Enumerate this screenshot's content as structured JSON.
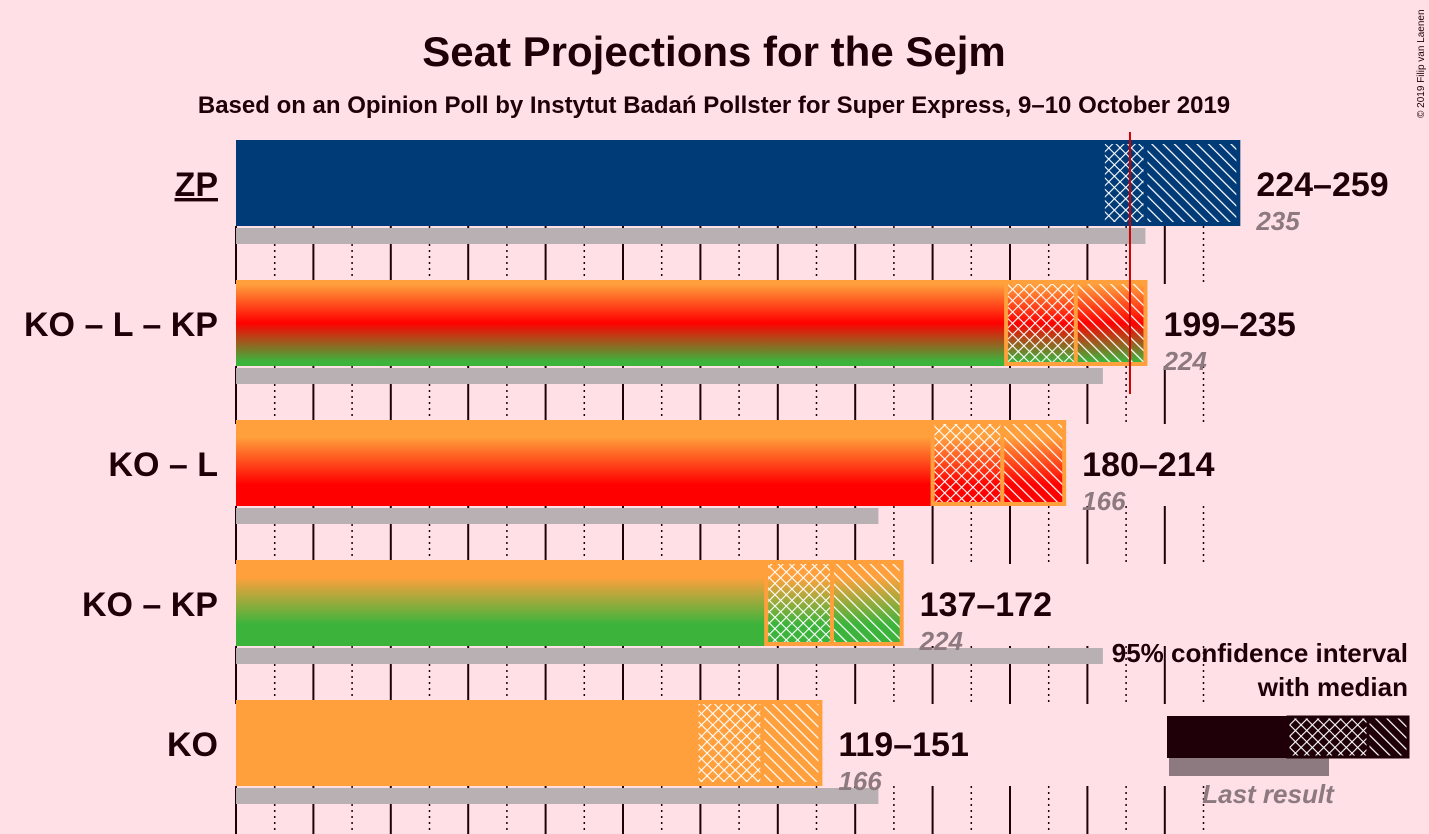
{
  "chart_data": {
    "type": "bar",
    "title": "Seat Projections for the Sejm",
    "subtitle": "Based on an Opinion Poll by Instytut Badań Pollster for Super Express, 9–10 October 2019",
    "copyright": "© 2019 Filip van Laenen",
    "majority": 231,
    "xlim": [
      0,
      260
    ],
    "categories": [
      "ZP",
      "KO – L – KP",
      "KO – L",
      "KO – KP",
      "KO"
    ],
    "series": [
      {
        "party": "ZP",
        "underline": true,
        "low": 224,
        "median": 235,
        "high": 259,
        "range_label": "224–259",
        "last_result": 235,
        "last_label": "235",
        "colors": [
          "#003b78"
        ]
      },
      {
        "party": "KO – L – KP",
        "underline": false,
        "low": 199,
        "median": 217,
        "high": 235,
        "range_label": "199–235",
        "last_result": 224,
        "last_label": "224",
        "colors": [
          "#ffa03c",
          "#ff0000",
          "#3cb43c"
        ]
      },
      {
        "party": "KO – L",
        "underline": false,
        "low": 180,
        "median": 198,
        "high": 214,
        "range_label": "180–214",
        "last_result": 166,
        "last_label": "166",
        "colors": [
          "#ffa03c",
          "#ff0000"
        ]
      },
      {
        "party": "KO – KP",
        "underline": false,
        "low": 137,
        "median": 154,
        "high": 172,
        "range_label": "137–172",
        "last_result": 224,
        "last_label": "224",
        "colors": [
          "#ffa03c",
          "#3cb43c"
        ]
      },
      {
        "party": "KO",
        "underline": false,
        "low": 119,
        "median": 136,
        "high": 151,
        "range_label": "119–151",
        "last_result": 166,
        "last_label": "166",
        "colors": [
          "#ffa03c"
        ]
      }
    ],
    "legend": {
      "line1": "95% confidence interval",
      "line2": "with median",
      "last_result": "Last result",
      "position": "bottom-right"
    }
  },
  "colors": {
    "background": "#ffe0e6",
    "text": "#200008",
    "last_result_bar": "#b8b0b2",
    "majority_line": "#cc0000"
  }
}
